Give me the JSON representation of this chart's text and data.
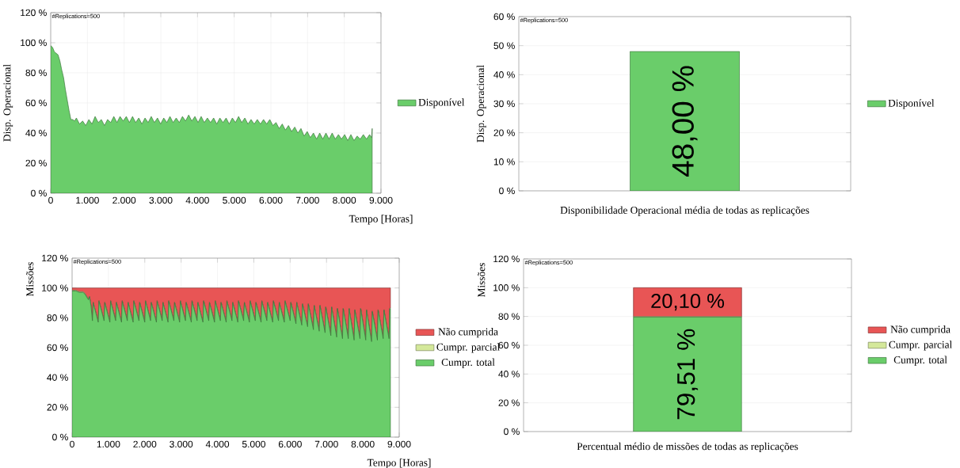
{
  "chart_data": [
    {
      "type": "area",
      "ylabel": "Disp. Operacional",
      "xlabel": "Tempo [Horas]",
      "annotations": [
        "#Replications=500"
      ],
      "xlim": [
        0,
        9000
      ],
      "xticks": [
        0,
        {
          "value": 1000,
          "label": "1.000"
        },
        {
          "value": 2000,
          "label": "2.000"
        },
        {
          "value": 3000,
          "label": "3.000"
        },
        {
          "value": 4000,
          "label": "4.000"
        },
        {
          "value": 5000,
          "label": "5.000"
        },
        {
          "value": 6000,
          "label": "6.000"
        },
        {
          "value": 7000,
          "label": "7.000"
        },
        {
          "value": 8000,
          "label": "8.000"
        },
        {
          "value": 9000,
          "label": "9.000"
        }
      ],
      "ylim": [
        0,
        120
      ],
      "yticks": [
        {
          "value": 0,
          "label": "0 %"
        },
        {
          "value": 20,
          "label": "20 %"
        },
        {
          "value": 40,
          "label": "40 %"
        },
        {
          "value": 60,
          "label": "60 %"
        },
        {
          "value": 80,
          "label": "80 %"
        },
        {
          "value": 100,
          "label": "100 %"
        },
        {
          "value": 120,
          "label": "120 %"
        }
      ],
      "grid": true,
      "legend": "right",
      "x": [
        0,
        50,
        100,
        150,
        200,
        250,
        300,
        350,
        400,
        450,
        500,
        550,
        600,
        650,
        700,
        785,
        870,
        955,
        1040,
        1125,
        1210,
        1295,
        1380,
        1465,
        1550,
        1635,
        1720,
        1805,
        1890,
        1975,
        2060,
        2145,
        2230,
        2315,
        2400,
        2485,
        2570,
        2655,
        2740,
        2825,
        2910,
        2995,
        3080,
        3165,
        3250,
        3335,
        3420,
        3505,
        3590,
        3675,
        3760,
        3845,
        3930,
        4015,
        4100,
        4185,
        4270,
        4355,
        4440,
        4525,
        4610,
        4695,
        4780,
        4865,
        4950,
        5035,
        5120,
        5205,
        5290,
        5375,
        5460,
        5545,
        5630,
        5715,
        5800,
        5885,
        5970,
        6055,
        6140,
        6225,
        6310,
        6395,
        6480,
        6565,
        6650,
        6735,
        6820,
        6905,
        6990,
        7075,
        7160,
        7245,
        7330,
        7415,
        7500,
        7585,
        7670,
        7755,
        7840,
        7925,
        8010,
        8095,
        8180,
        8265,
        8350,
        8435,
        8520,
        8605,
        8690,
        8745,
        8760
      ],
      "series": [
        {
          "name": "Disponível",
          "color": "#6acd6a",
          "values": [
            98,
            97,
            94,
            93,
            92,
            88,
            82,
            77,
            69,
            62,
            55,
            49,
            49,
            48,
            50,
            46,
            48,
            45,
            49,
            46,
            51,
            47,
            49,
            45,
            49,
            47,
            51,
            47,
            51,
            48,
            51,
            47,
            51,
            47,
            50,
            46,
            50,
            47,
            51,
            47,
            50,
            46,
            50,
            47,
            51,
            47,
            50,
            47,
            51,
            48,
            52,
            48,
            51,
            47,
            51,
            47,
            50,
            47,
            50,
            46,
            50,
            47,
            50,
            46,
            50,
            47,
            51,
            47,
            50,
            46,
            49,
            46,
            49,
            46,
            49,
            46,
            49,
            45,
            47,
            43,
            46,
            42,
            45,
            41,
            44,
            40,
            43,
            38,
            41,
            37,
            40,
            36,
            40,
            36,
            40,
            36,
            40,
            36,
            39,
            36,
            39,
            35,
            39,
            35,
            38,
            36,
            39,
            36,
            39,
            37,
            43
          ]
        }
      ]
    },
    {
      "type": "bar",
      "ylabel": "Disp. Operacional",
      "xlabel": "Disponibilidade Operacional média de todas as replicações",
      "annotations": [
        "#Replications=500"
      ],
      "categories": [
        null
      ],
      "ylim": [
        0,
        60
      ],
      "yticks": [
        {
          "value": 0,
          "label": "0 %"
        },
        {
          "value": 10,
          "label": "10 %"
        },
        {
          "value": 20,
          "label": "20 %"
        },
        {
          "value": 30,
          "label": "30 %"
        },
        {
          "value": 40,
          "label": "40 %"
        },
        {
          "value": 50,
          "label": "50 %"
        },
        {
          "value": 60,
          "label": "60 %"
        }
      ],
      "grid": "y",
      "legend": "right",
      "series": [
        {
          "name": "Disponível",
          "color": "#6acd6a",
          "values": [
            48.0
          ],
          "value_labels": [
            "48,00 %"
          ]
        }
      ]
    },
    {
      "type": "area",
      "stacked": true,
      "ylabel": "Missões",
      "xlabel": "Tempo [Horas]",
      "annotations": [
        "#Replications=500"
      ],
      "xlim": [
        0,
        9000
      ],
      "xticks": [
        0,
        {
          "value": 1000,
          "label": "1.000"
        },
        {
          "value": 2000,
          "label": "2.000"
        },
        {
          "value": 3000,
          "label": "3.000"
        },
        {
          "value": 4000,
          "label": "4.000"
        },
        {
          "value": 5000,
          "label": "5.000"
        },
        {
          "value": 6000,
          "label": "6.000"
        },
        {
          "value": 7000,
          "label": "7.000"
        },
        {
          "value": 8000,
          "label": "8.000"
        },
        {
          "value": 9000,
          "label": "9.000"
        }
      ],
      "ylim": [
        0,
        120
      ],
      "yticks": [
        {
          "value": 0,
          "label": "0 %"
        },
        {
          "value": 20,
          "label": "20 %"
        },
        {
          "value": 40,
          "label": "40 %"
        },
        {
          "value": 60,
          "label": "60 %"
        },
        {
          "value": 80,
          "label": "80 %"
        },
        {
          "value": 100,
          "label": "100 %"
        },
        {
          "value": 120,
          "label": "120 %"
        }
      ],
      "grid": true,
      "legend": "right",
      "x": [
        0,
        100,
        200,
        300,
        350,
        400,
        450,
        480,
        520,
        560,
        580,
        720,
        740,
        880,
        900,
        1040,
        1060,
        1200,
        1220,
        1360,
        1380,
        1520,
        1540,
        1680,
        1700,
        1840,
        1860,
        2000,
        2020,
        2160,
        2180,
        2320,
        2340,
        2480,
        2500,
        2640,
        2660,
        2800,
        2820,
        2960,
        2980,
        3120,
        3140,
        3280,
        3300,
        3440,
        3460,
        3600,
        3620,
        3760,
        3780,
        3920,
        3940,
        4080,
        4100,
        4240,
        4260,
        4400,
        4420,
        4560,
        4580,
        4720,
        4740,
        4880,
        4900,
        5040,
        5060,
        5200,
        5220,
        5360,
        5380,
        5520,
        5540,
        5680,
        5700,
        5840,
        5860,
        6000,
        6020,
        6160,
        6180,
        6320,
        6340,
        6480,
        6500,
        6640,
        6660,
        6800,
        6820,
        6960,
        6980,
        7120,
        7140,
        7280,
        7300,
        7440,
        7460,
        7600,
        7620,
        7760,
        7780,
        7920,
        7940,
        8080,
        8100,
        8240,
        8260,
        8400,
        8420,
        8560,
        8580,
        8720,
        8740,
        8760
      ],
      "series": [
        {
          "name": "Cumpr. total",
          "color": "#6acd6a",
          "values": [
            98,
            98,
            97,
            97,
            96,
            94,
            92,
            94,
            88,
            78,
            90,
            77,
            91,
            78,
            90,
            77,
            91,
            78,
            90,
            77,
            91,
            78,
            90,
            77,
            91,
            78,
            90,
            77,
            91,
            78,
            90,
            77,
            91,
            78,
            90,
            77,
            91,
            78,
            90,
            77,
            91,
            78,
            90,
            77,
            91,
            78,
            90,
            77,
            91,
            78,
            90,
            77,
            91,
            78,
            90,
            77,
            91,
            78,
            90,
            77,
            91,
            78,
            90,
            77,
            91,
            78,
            90,
            77,
            91,
            78,
            90,
            77,
            91,
            78,
            90,
            77,
            91,
            78,
            90,
            76,
            90,
            75,
            89,
            74,
            89,
            72,
            88,
            71,
            88,
            70,
            87,
            68,
            87,
            67,
            86,
            66,
            86,
            66,
            86,
            65,
            85,
            66,
            86,
            65,
            85,
            64,
            84,
            65,
            85,
            66,
            85,
            66,
            86,
            86
          ]
        },
        {
          "name": "Cumpr. parcial",
          "color": "#d4e89a",
          "values": [
            0.5,
            0.5,
            0.5,
            0.5,
            0.5,
            0.5,
            0.5,
            0.5,
            0.5,
            0.5,
            0.5,
            0.5,
            0.5,
            0.5,
            0.5,
            0.5,
            0.5,
            0.5,
            0.5,
            0.5,
            0.5,
            0.5,
            0.5,
            0.5,
            0.5,
            0.5,
            0.5,
            0.5,
            0.5,
            0.5,
            0.5,
            0.5,
            0.5,
            0.5,
            0.5,
            0.5,
            0.5,
            0.5,
            0.5,
            0.5,
            0.5,
            0.5,
            0.5,
            0.5,
            0.5,
            0.5,
            0.5,
            0.5,
            0.5,
            0.5,
            0.5,
            0.5,
            0.5,
            0.5,
            0.5,
            0.5,
            0.5,
            0.5,
            0.5,
            0.5,
            0.5,
            0.5,
            0.5,
            0.5,
            0.5,
            0.5,
            0.5,
            0.5,
            0.5,
            0.5,
            0.5,
            0.5,
            0.5,
            0.5,
            0.5,
            0.5,
            0.5,
            0.5,
            0.5,
            0.5,
            0.5,
            0.5,
            0.5,
            0.5,
            0.5,
            0.5,
            0.5,
            0.5,
            0.5,
            0.5,
            0.5,
            0.5,
            0.5,
            0.5,
            0.5,
            0.5,
            0.5,
            0.5,
            0.5,
            0.5,
            0.5,
            0.5,
            0.5,
            0.5,
            0.5,
            0.5,
            0.5,
            0.5,
            0.5,
            0.5,
            0.5,
            0.5,
            0.5,
            0.5
          ]
        },
        {
          "name": "Não cumprida",
          "color": "#e85555",
          "values": [
            1.5,
            1.5,
            2.5,
            2.5,
            3.5,
            5.5,
            7.5,
            5.5,
            11.5,
            21.5,
            9.5,
            22.5,
            8.5,
            21.5,
            9.5,
            22.5,
            8.5,
            21.5,
            9.5,
            22.5,
            8.5,
            21.5,
            9.5,
            22.5,
            8.5,
            21.5,
            9.5,
            22.5,
            8.5,
            21.5,
            9.5,
            22.5,
            8.5,
            21.5,
            9.5,
            22.5,
            8.5,
            21.5,
            9.5,
            22.5,
            8.5,
            21.5,
            9.5,
            22.5,
            8.5,
            21.5,
            9.5,
            22.5,
            8.5,
            21.5,
            9.5,
            22.5,
            8.5,
            21.5,
            9.5,
            22.5,
            8.5,
            21.5,
            9.5,
            22.5,
            8.5,
            21.5,
            9.5,
            22.5,
            8.5,
            21.5,
            9.5,
            22.5,
            8.5,
            21.5,
            9.5,
            22.5,
            8.5,
            21.5,
            9.5,
            22.5,
            8.5,
            21.5,
            9.5,
            23.5,
            9.5,
            24.5,
            10.5,
            25.5,
            10.5,
            27.5,
            11.5,
            28.5,
            11.5,
            29.5,
            12.5,
            31.5,
            12.5,
            32.5,
            13.5,
            33.5,
            13.5,
            33.5,
            13.5,
            34.5,
            14.5,
            33.5,
            13.5,
            34.5,
            14.5,
            35.5,
            15.5,
            34.5,
            14.5,
            33.5,
            14.5,
            33.5,
            13.5,
            13.5
          ]
        }
      ]
    },
    {
      "type": "bar",
      "stacked": true,
      "ylabel": "Missões",
      "xlabel": "Percentual médio de missões de todas as replicações",
      "annotations": [
        "#Replications=500"
      ],
      "categories": [
        null
      ],
      "ylim": [
        0,
        120
      ],
      "yticks": [
        {
          "value": 0,
          "label": "0 %"
        },
        {
          "value": 20,
          "label": "20 %"
        },
        {
          "value": 40,
          "label": "40 %"
        },
        {
          "value": 60,
          "label": "60 %"
        },
        {
          "value": 80,
          "label": "80 %"
        },
        {
          "value": 100,
          "label": "100 %"
        },
        {
          "value": 120,
          "label": "120 %"
        }
      ],
      "grid": "y",
      "legend": "right",
      "series": [
        {
          "name": "Cumpr. total",
          "color": "#6acd6a",
          "values": [
            79.51
          ],
          "value_labels": [
            "79,51 %"
          ]
        },
        {
          "name": "Cumpr. parcial",
          "color": "#d4e89a",
          "values": [
            0.4
          ],
          "value_labels": [
            null
          ]
        },
        {
          "name": "Não cumprida",
          "color": "#e85555",
          "values": [
            20.1
          ],
          "value_labels": [
            "20,10 %"
          ]
        }
      ]
    }
  ]
}
